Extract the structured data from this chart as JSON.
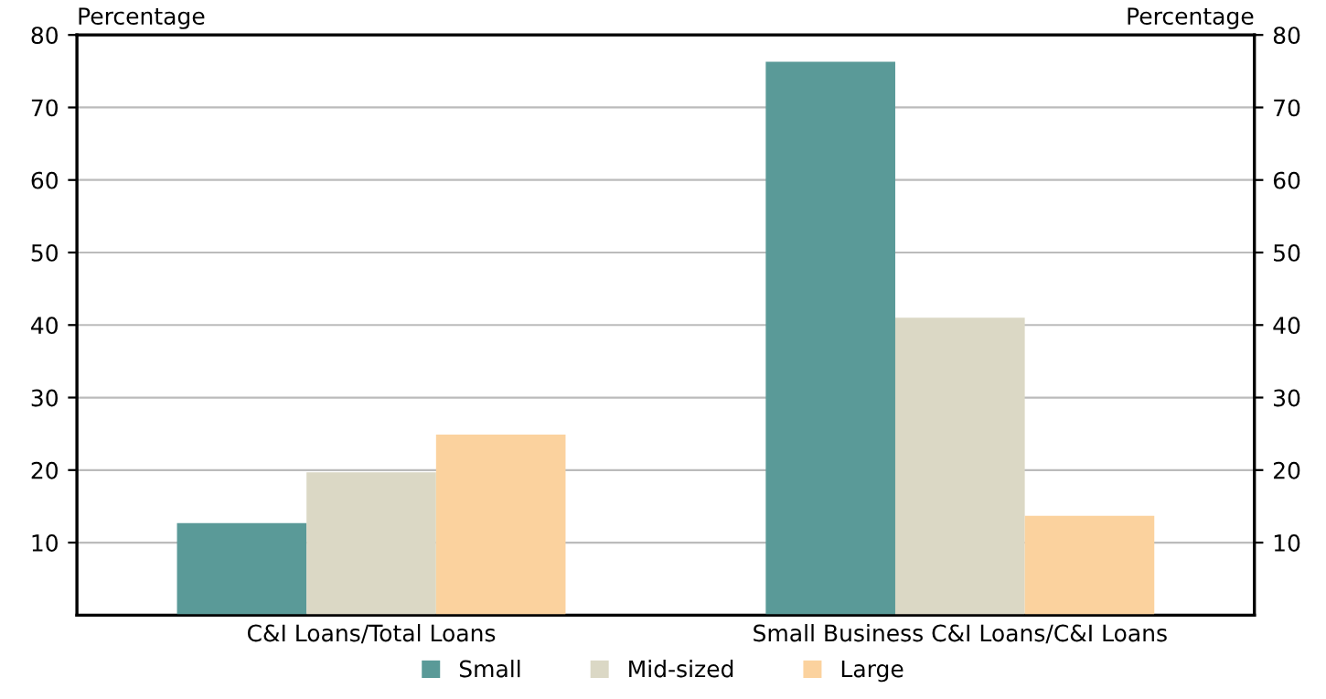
{
  "chart_data": {
    "type": "bar",
    "categories": [
      "C&I Loans/Total Loans",
      "Small Business C&I Loans/C&I Loans"
    ],
    "series": [
      {
        "name": "Small",
        "color": "#5a9a98",
        "values": [
          12.7,
          76.3
        ]
      },
      {
        "name": "Mid-sized",
        "color": "#dbd8c5",
        "values": [
          19.7,
          41.0
        ]
      },
      {
        "name": "Large",
        "color": "#fbd29e",
        "values": [
          24.9,
          13.7
        ]
      }
    ],
    "ylabel": "Percentage",
    "y2label": "Percentage",
    "ylim": [
      0,
      80
    ],
    "yticks": [
      10,
      20,
      30,
      40,
      50,
      60,
      70,
      80
    ],
    "y2lim": [
      0,
      80
    ],
    "y2ticks": [
      10,
      20,
      30,
      40,
      50,
      60,
      70,
      80
    ],
    "grid": "y",
    "legend": "bottom"
  }
}
